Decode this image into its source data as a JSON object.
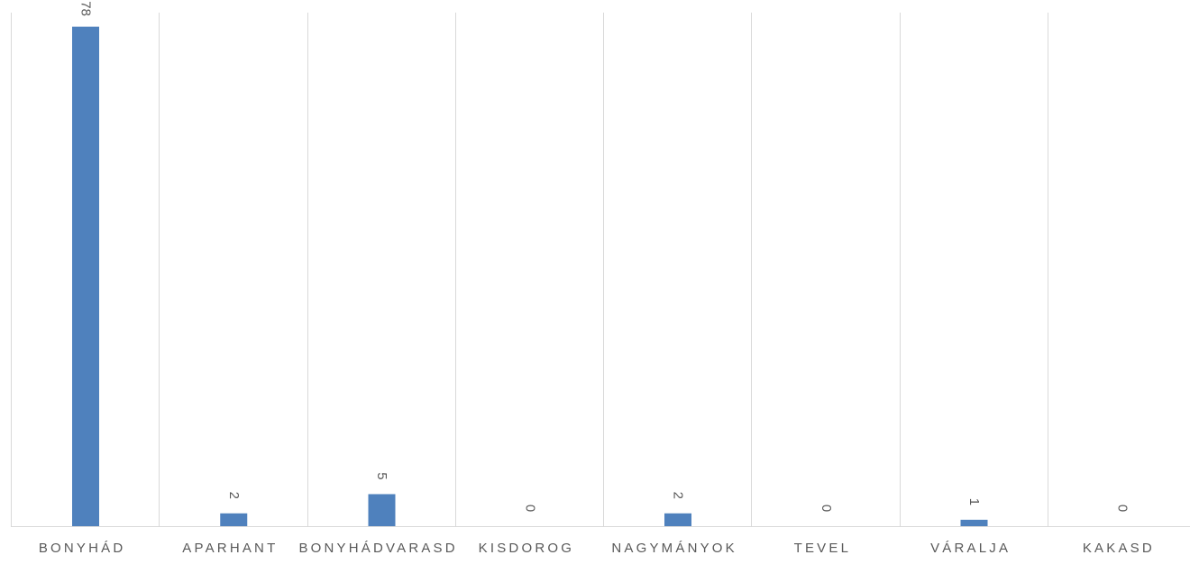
{
  "chart_data": {
    "type": "bar",
    "title": "",
    "xlabel": "",
    "ylabel": "",
    "categories": [
      "BONYHÁD",
      "APARHANT",
      "BONYHÁDVARASD",
      "KISDOROG",
      "NAGYMÁNYOK",
      "TEVEL",
      "VÁRALJA",
      "KAKASD"
    ],
    "values": [
      78,
      2,
      5,
      0,
      2,
      0,
      1,
      0
    ],
    "ylim": [
      0,
      80
    ],
    "grid": "vertical category separators",
    "legend": "none",
    "colors": {
      "bar": "#4F81BD",
      "grid": "#D9D9D9",
      "axis": "#D9D9D9",
      "label": "#595959"
    }
  }
}
